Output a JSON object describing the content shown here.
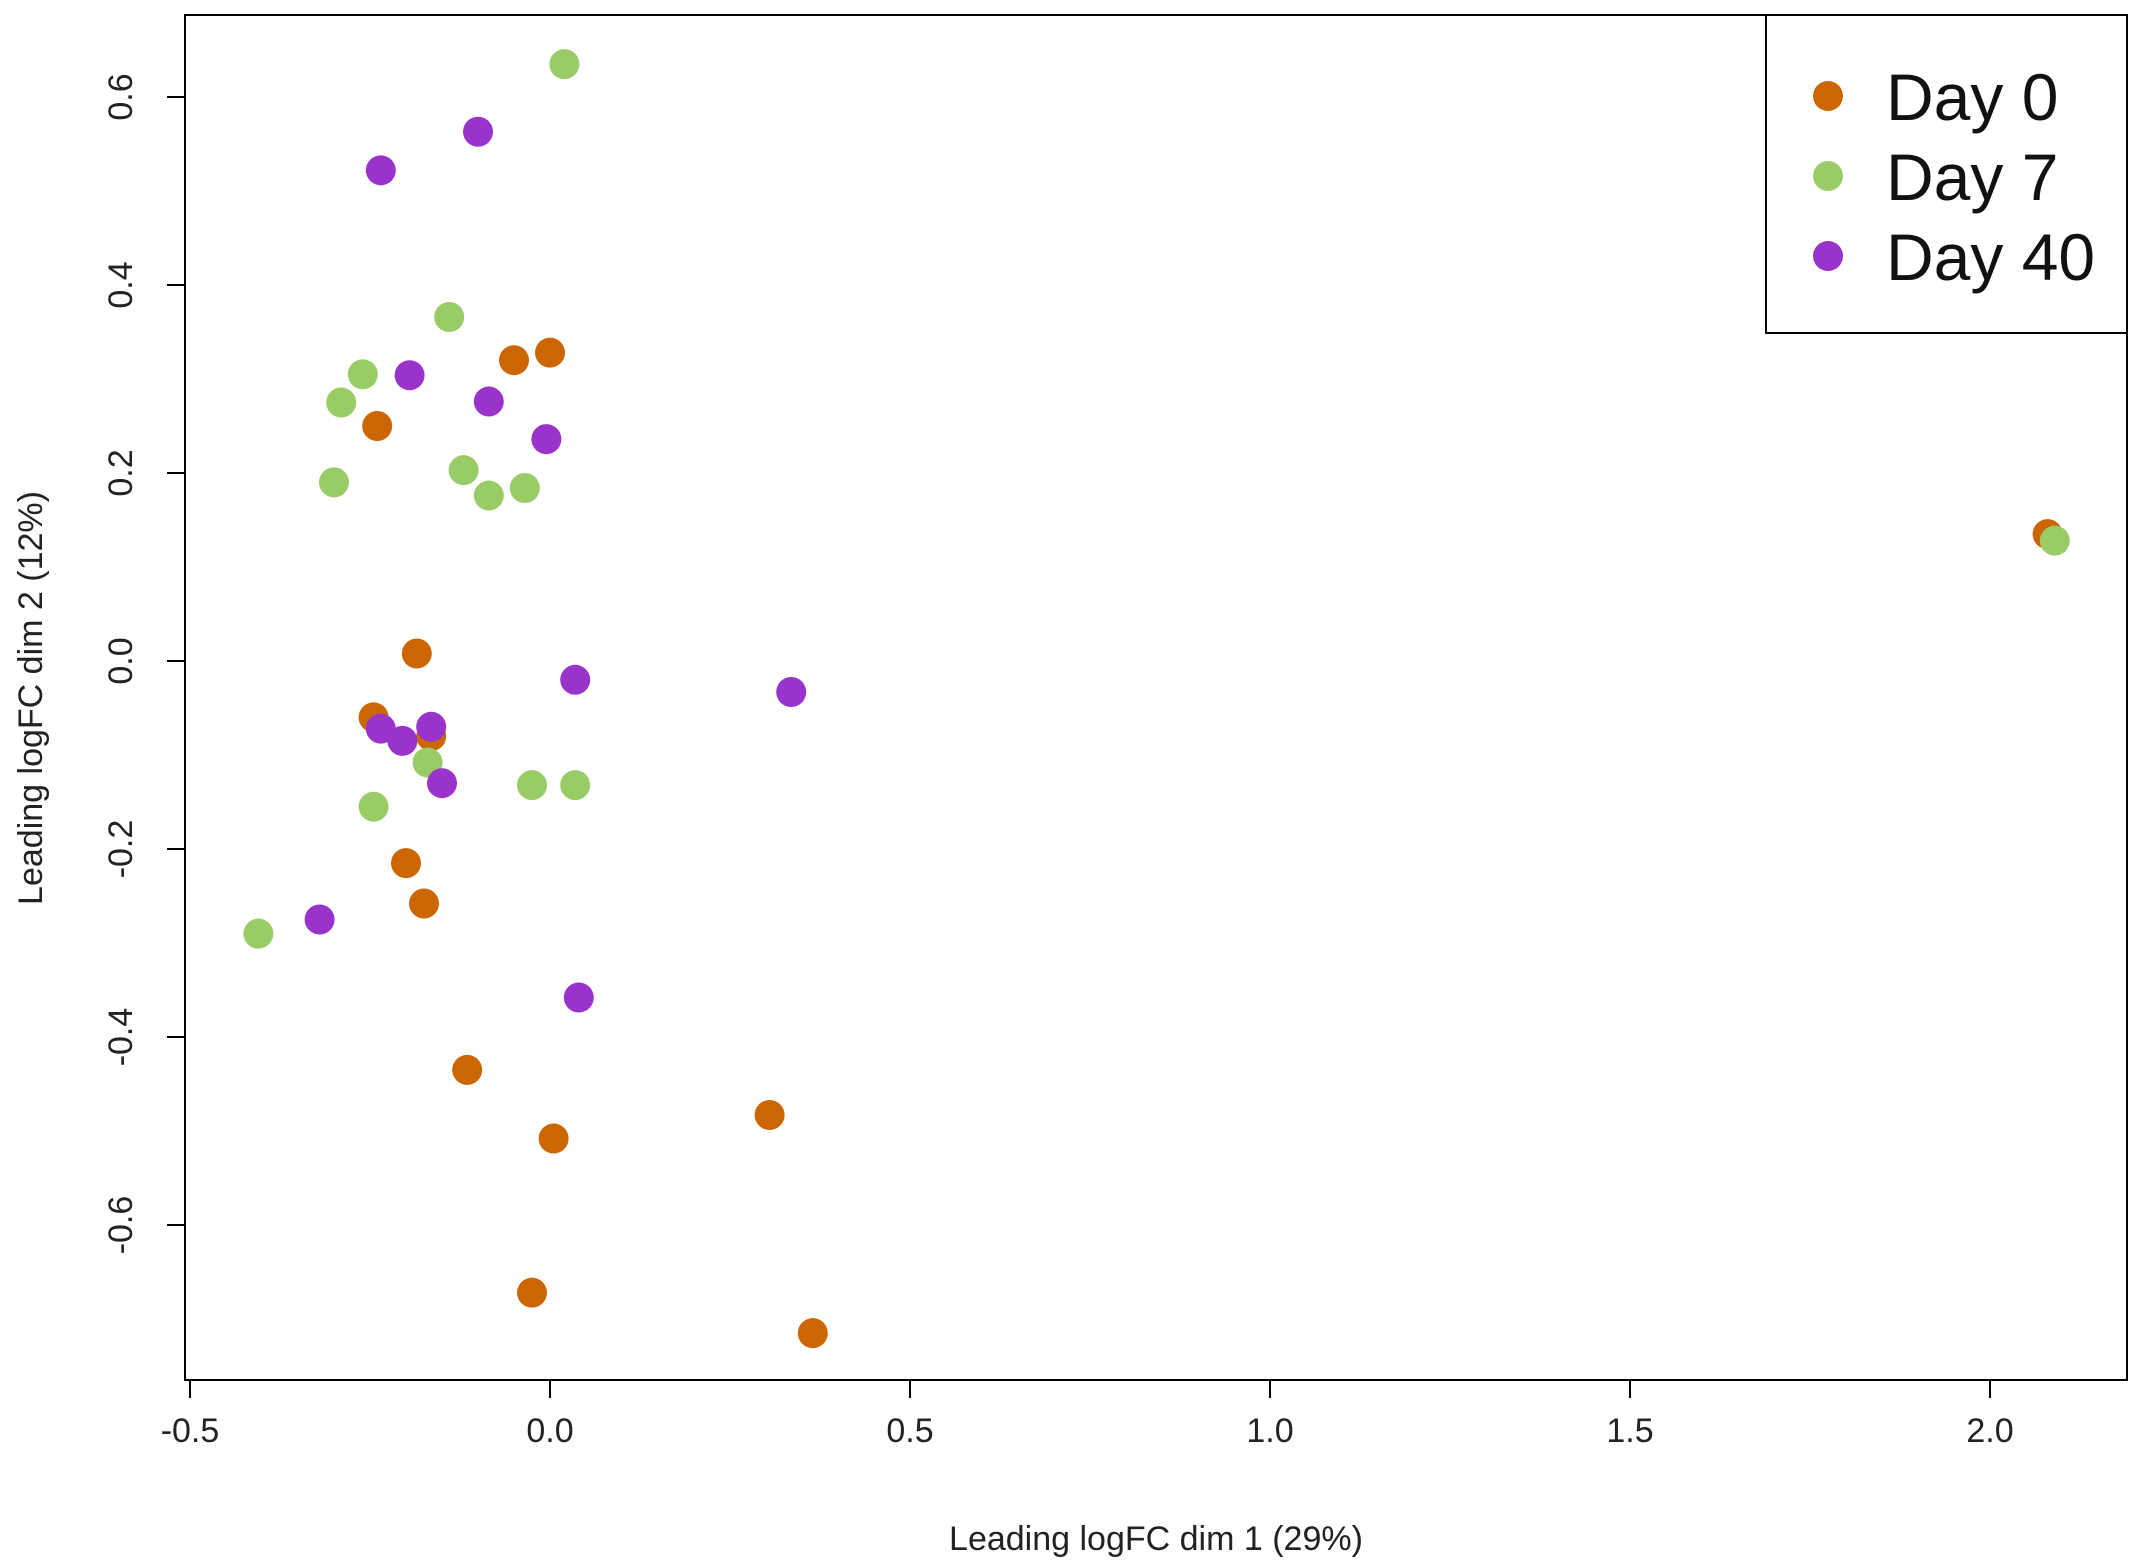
{
  "chart_data": {
    "type": "scatter",
    "title": "",
    "xlabel": "Leading logFC dim 1 (29%)",
    "ylabel": "Leading logFC dim 2 (12%)",
    "xlim": [
      -0.5,
      2.2
    ],
    "ylim": [
      -0.77,
      0.69
    ],
    "x_ticks": [
      -0.5,
      0.0,
      0.5,
      1.0,
      1.5,
      2.0
    ],
    "x_tick_labels": [
      "-0.5",
      "0.0",
      "0.5",
      "1.0",
      "1.5",
      "2.0"
    ],
    "y_ticks": [
      -0.6,
      -0.4,
      -0.2,
      0.0,
      0.2,
      0.4,
      0.6
    ],
    "y_tick_labels": [
      "-0.6",
      "-0.4",
      "-0.2",
      "0.0",
      "0.2",
      "0.4",
      "0.6"
    ],
    "grid": false,
    "legend_position": "top-right",
    "series": [
      {
        "name": "Day 0",
        "color": "#CC6600",
        "points": [
          [
            -0.05,
            0.32
          ],
          [
            0.0,
            0.328
          ],
          [
            -0.24,
            0.25
          ],
          [
            -0.185,
            0.008
          ],
          [
            -0.245,
            -0.06
          ],
          [
            -0.165,
            -0.08
          ],
          [
            -0.2,
            -0.215
          ],
          [
            -0.175,
            -0.258
          ],
          [
            -0.115,
            -0.435
          ],
          [
            0.005,
            -0.508
          ],
          [
            0.305,
            -0.483
          ],
          [
            -0.025,
            -0.672
          ],
          [
            0.365,
            -0.715
          ],
          [
            2.08,
            0.135
          ]
        ]
      },
      {
        "name": "Day 7",
        "color": "#99CC66",
        "points": [
          [
            0.02,
            0.635
          ],
          [
            -0.14,
            0.366
          ],
          [
            -0.26,
            0.305
          ],
          [
            -0.29,
            0.275
          ],
          [
            -0.12,
            0.203
          ],
          [
            -0.3,
            0.19
          ],
          [
            -0.085,
            0.176
          ],
          [
            -0.035,
            0.184
          ],
          [
            -0.17,
            -0.108
          ],
          [
            -0.245,
            -0.155
          ],
          [
            -0.025,
            -0.132
          ],
          [
            0.035,
            -0.132
          ],
          [
            -0.405,
            -0.29
          ],
          [
            2.09,
            0.128
          ]
        ]
      },
      {
        "name": "Day 40",
        "color": "#9933CC",
        "points": [
          [
            -0.1,
            0.563
          ],
          [
            -0.235,
            0.522
          ],
          [
            -0.195,
            0.304
          ],
          [
            -0.085,
            0.276
          ],
          [
            -0.005,
            0.236
          ],
          [
            0.035,
            -0.02
          ],
          [
            0.335,
            -0.033
          ],
          [
            -0.235,
            -0.072
          ],
          [
            -0.205,
            -0.085
          ],
          [
            -0.165,
            -0.07
          ],
          [
            -0.15,
            -0.13
          ],
          [
            -0.32,
            -0.275
          ],
          [
            0.04,
            -0.358
          ]
        ]
      }
    ]
  }
}
